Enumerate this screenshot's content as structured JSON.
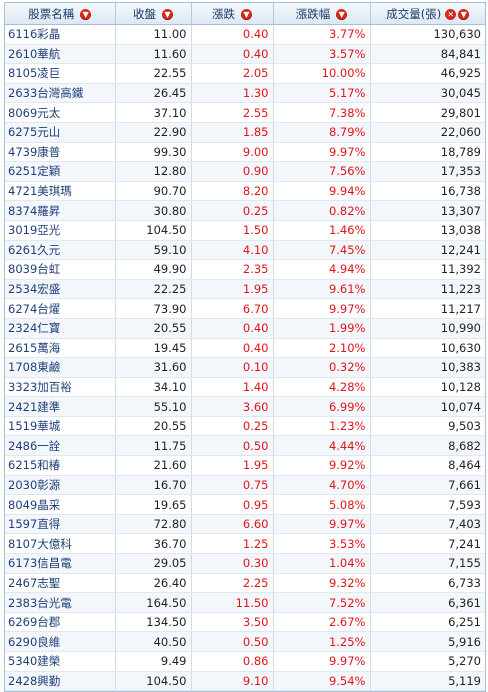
{
  "colors": {
    "header_text": "#1a3a66",
    "name_link": "#1e3f7a",
    "up_red": "#e0141a",
    "row_alt": "#f3f7fb",
    "border": "#a9bfd6"
  },
  "header": {
    "name": "股票名稱",
    "close": "收盤",
    "change": "漲跌",
    "pct": "漲跌幅",
    "volume": "成交量(張)"
  },
  "icons": {
    "sort": "sort-down-icon",
    "close": "close-x-icon"
  },
  "rows": [
    {
      "name": "6116彩晶",
      "close": "11.00",
      "change": "0.40",
      "pct": "3.77%",
      "volume": "130,630"
    },
    {
      "name": "2610華航",
      "close": "11.60",
      "change": "0.40",
      "pct": "3.57%",
      "volume": "84,841"
    },
    {
      "name": "8105凌巨",
      "close": "22.55",
      "change": "2.05",
      "pct": "10.00%",
      "volume": "46,925"
    },
    {
      "name": "2633台灣高鐵",
      "close": "26.45",
      "change": "1.30",
      "pct": "5.17%",
      "volume": "30,045"
    },
    {
      "name": "8069元太",
      "close": "37.10",
      "change": "2.55",
      "pct": "7.38%",
      "volume": "29,801"
    },
    {
      "name": "6275元山",
      "close": "22.90",
      "change": "1.85",
      "pct": "8.79%",
      "volume": "22,060"
    },
    {
      "name": "4739康普",
      "close": "99.30",
      "change": "9.00",
      "pct": "9.97%",
      "volume": "18,789"
    },
    {
      "name": "6251定穎",
      "close": "12.80",
      "change": "0.90",
      "pct": "7.56%",
      "volume": "17,353"
    },
    {
      "name": "4721美琪瑪",
      "close": "90.70",
      "change": "8.20",
      "pct": "9.94%",
      "volume": "16,738"
    },
    {
      "name": "8374羅昇",
      "close": "30.80",
      "change": "0.25",
      "pct": "0.82%",
      "volume": "13,307"
    },
    {
      "name": "3019亞光",
      "close": "104.50",
      "change": "1.50",
      "pct": "1.46%",
      "volume": "13,038"
    },
    {
      "name": "6261久元",
      "close": "59.10",
      "change": "4.10",
      "pct": "7.45%",
      "volume": "12,241"
    },
    {
      "name": "8039台虹",
      "close": "49.90",
      "change": "2.35",
      "pct": "4.94%",
      "volume": "11,392"
    },
    {
      "name": "2534宏盛",
      "close": "22.25",
      "change": "1.95",
      "pct": "9.61%",
      "volume": "11,223"
    },
    {
      "name": "6274台燿",
      "close": "73.90",
      "change": "6.70",
      "pct": "9.97%",
      "volume": "11,217"
    },
    {
      "name": "2324仁寶",
      "close": "20.55",
      "change": "0.40",
      "pct": "1.99%",
      "volume": "10,990"
    },
    {
      "name": "2615萬海",
      "close": "19.45",
      "change": "0.40",
      "pct": "2.10%",
      "volume": "10,630"
    },
    {
      "name": "1708東鹼",
      "close": "31.60",
      "change": "0.10",
      "pct": "0.32%",
      "volume": "10,383"
    },
    {
      "name": "3323加百裕",
      "close": "34.10",
      "change": "1.40",
      "pct": "4.28%",
      "volume": "10,128"
    },
    {
      "name": "2421建準",
      "close": "55.10",
      "change": "3.60",
      "pct": "6.99%",
      "volume": "10,074"
    },
    {
      "name": "1519華城",
      "close": "20.55",
      "change": "0.25",
      "pct": "1.23%",
      "volume": "9,503"
    },
    {
      "name": "2486一詮",
      "close": "11.75",
      "change": "0.50",
      "pct": "4.44%",
      "volume": "8,682"
    },
    {
      "name": "6215和椿",
      "close": "21.60",
      "change": "1.95",
      "pct": "9.92%",
      "volume": "8,464"
    },
    {
      "name": "2030彰源",
      "close": "16.70",
      "change": "0.75",
      "pct": "4.70%",
      "volume": "7,661"
    },
    {
      "name": "8049晶采",
      "close": "19.65",
      "change": "0.95",
      "pct": "5.08%",
      "volume": "7,593"
    },
    {
      "name": "1597直得",
      "close": "72.80",
      "change": "6.60",
      "pct": "9.97%",
      "volume": "7,403"
    },
    {
      "name": "8107大億科",
      "close": "36.70",
      "change": "1.25",
      "pct": "3.53%",
      "volume": "7,241"
    },
    {
      "name": "6173信昌電",
      "close": "29.05",
      "change": "0.30",
      "pct": "1.04%",
      "volume": "7,155"
    },
    {
      "name": "2467志聖",
      "close": "26.40",
      "change": "2.25",
      "pct": "9.32%",
      "volume": "6,733"
    },
    {
      "name": "2383台光電",
      "close": "164.50",
      "change": "11.50",
      "pct": "7.52%",
      "volume": "6,361"
    },
    {
      "name": "6269台郡",
      "close": "134.50",
      "change": "3.50",
      "pct": "2.67%",
      "volume": "6,251"
    },
    {
      "name": "6290良維",
      "close": "40.50",
      "change": "0.50",
      "pct": "1.25%",
      "volume": "5,916"
    },
    {
      "name": "5340建榮",
      "close": "9.49",
      "change": "0.86",
      "pct": "9.97%",
      "volume": "5,270"
    },
    {
      "name": "2428興勤",
      "close": "104.50",
      "change": "9.10",
      "pct": "9.54%",
      "volume": "5,119"
    }
  ]
}
